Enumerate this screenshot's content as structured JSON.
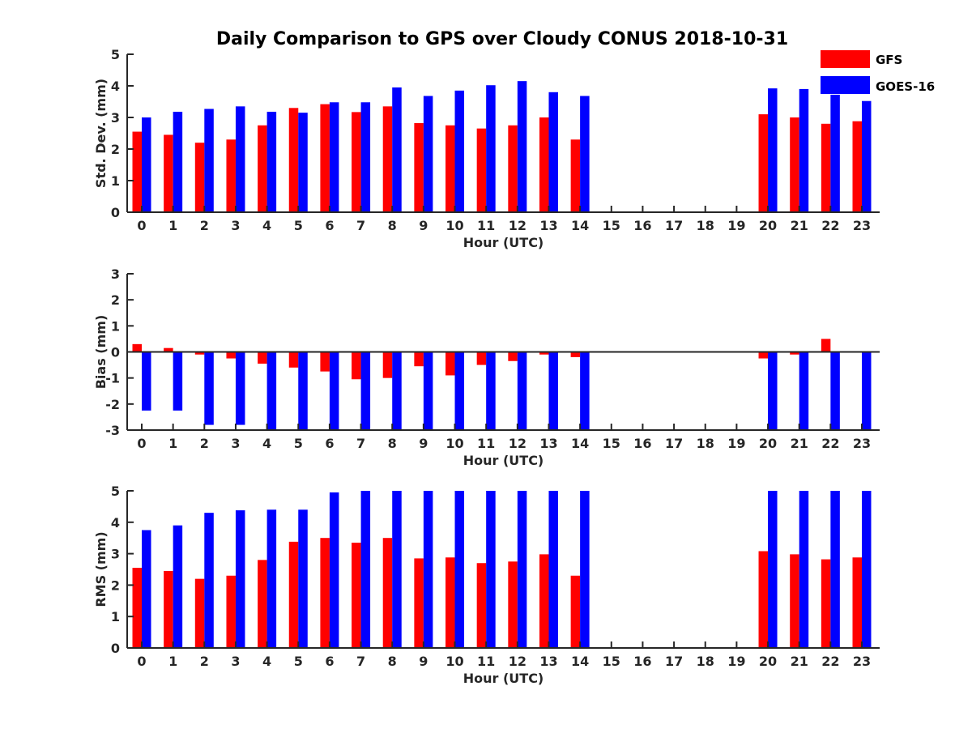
{
  "title": "Daily Comparison to GPS over Cloudy CONUS 2018-10-31",
  "legend": [
    {
      "label": "GFS",
      "color": "#ff0000"
    },
    {
      "label": "GOES-16",
      "color": "#0000ff"
    }
  ],
  "chart_data": [
    {
      "type": "bar",
      "ylabel": "Std. Dev. (mm)",
      "xlabel": "Hour (UTC)",
      "ylim": [
        0,
        5
      ],
      "yticks": [
        0,
        1,
        2,
        3,
        4,
        5
      ],
      "grid": false,
      "categories": [
        "0",
        "1",
        "2",
        "3",
        "4",
        "5",
        "6",
        "7",
        "8",
        "9",
        "10",
        "11",
        "12",
        "13",
        "14",
        "15",
        "16",
        "17",
        "18",
        "19",
        "20",
        "21",
        "22",
        "23"
      ],
      "series": [
        {
          "name": "GFS",
          "color": "#ff0000",
          "values": [
            2.55,
            2.45,
            2.2,
            2.3,
            2.75,
            3.3,
            3.42,
            3.17,
            3.35,
            2.82,
            2.75,
            2.65,
            2.75,
            3.0,
            2.3,
            null,
            null,
            null,
            null,
            null,
            3.1,
            3.0,
            2.8,
            2.88
          ]
        },
        {
          "name": "GOES-16",
          "color": "#0000ff",
          "values": [
            3.0,
            3.18,
            3.27,
            3.35,
            3.18,
            3.15,
            3.48,
            3.48,
            3.95,
            3.68,
            3.85,
            4.02,
            4.15,
            3.8,
            3.68,
            null,
            null,
            null,
            null,
            null,
            3.92,
            3.9,
            3.72,
            3.52
          ]
        }
      ]
    },
    {
      "type": "bar",
      "ylabel": "Bias (mm)",
      "xlabel": "Hour (UTC)",
      "ylim": [
        -3,
        3
      ],
      "yticks": [
        -3,
        -2,
        -1,
        0,
        1,
        2,
        3
      ],
      "grid": false,
      "zero_line": true,
      "categories": [
        "0",
        "1",
        "2",
        "3",
        "4",
        "5",
        "6",
        "7",
        "8",
        "9",
        "10",
        "11",
        "12",
        "13",
        "14",
        "15",
        "16",
        "17",
        "18",
        "19",
        "20",
        "21",
        "22",
        "23"
      ],
      "series": [
        {
          "name": "GFS",
          "color": "#ff0000",
          "values": [
            0.3,
            0.15,
            -0.1,
            -0.25,
            -0.45,
            -0.6,
            -0.75,
            -1.05,
            -1.0,
            -0.55,
            -0.9,
            -0.5,
            -0.35,
            -0.1,
            -0.2,
            null,
            null,
            null,
            null,
            null,
            -0.25,
            -0.1,
            0.5,
            0.0
          ]
        },
        {
          "name": "GOES-16",
          "color": "#0000ff",
          "values": [
            -2.25,
            -2.25,
            -2.8,
            -2.8,
            -3.0,
            -3.0,
            -3.0,
            -3.0,
            -3.0,
            -3.0,
            -3.0,
            -3.0,
            -3.0,
            -3.0,
            -3.0,
            null,
            null,
            null,
            null,
            null,
            -3.0,
            -3.0,
            -3.0,
            -3.0
          ]
        }
      ]
    },
    {
      "type": "bar",
      "ylabel": "RMS (mm)",
      "xlabel": "Hour (UTC)",
      "ylim": [
        0,
        5
      ],
      "yticks": [
        0,
        1,
        2,
        3,
        4,
        5
      ],
      "grid": false,
      "categories": [
        "0",
        "1",
        "2",
        "3",
        "4",
        "5",
        "6",
        "7",
        "8",
        "9",
        "10",
        "11",
        "12",
        "13",
        "14",
        "15",
        "16",
        "17",
        "18",
        "19",
        "20",
        "21",
        "22",
        "23"
      ],
      "series": [
        {
          "name": "GFS",
          "color": "#ff0000",
          "values": [
            2.55,
            2.45,
            2.2,
            2.3,
            2.8,
            3.38,
            3.5,
            3.35,
            3.5,
            2.85,
            2.88,
            2.7,
            2.75,
            2.98,
            2.3,
            null,
            null,
            null,
            null,
            null,
            3.08,
            2.98,
            2.82,
            2.88
          ]
        },
        {
          "name": "GOES-16",
          "color": "#0000ff",
          "values": [
            3.75,
            3.9,
            4.3,
            4.38,
            4.4,
            4.4,
            4.95,
            5.0,
            5.0,
            5.0,
            5.0,
            5.0,
            5.0,
            5.0,
            5.0,
            null,
            null,
            null,
            null,
            null,
            5.0,
            5.0,
            5.0,
            5.0
          ]
        }
      ]
    }
  ]
}
